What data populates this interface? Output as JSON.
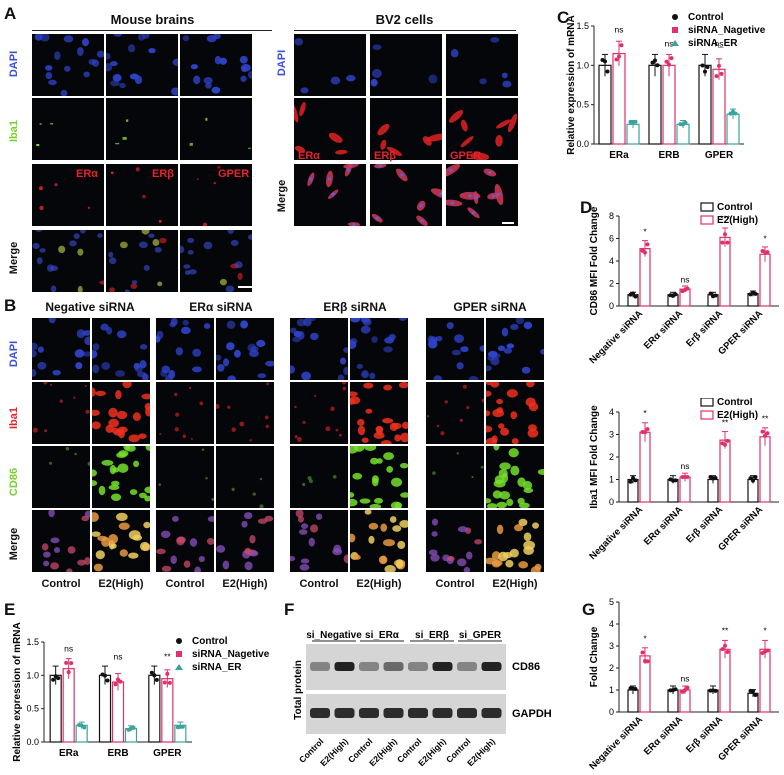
{
  "panels": {
    "A": {
      "label": "A",
      "groups": [
        "Mouse brains",
        "BV2 cells"
      ],
      "rows_mouse": [
        "DAPI",
        "Iba1",
        "",
        "Merge"
      ],
      "rows_bv2": [
        "DAPI",
        "",
        "Merge"
      ],
      "receptors": [
        "ERα",
        "ERβ",
        "GPER"
      ]
    },
    "B": {
      "label": "B",
      "groups": [
        "Negative siRNA",
        "ERα siRNA",
        "ERβ siRNA",
        "GPER siRNA"
      ],
      "rows": [
        "DAPI",
        "Iba1",
        "CD86",
        "Merge"
      ],
      "conditions": [
        "Control",
        "E2(High)"
      ]
    },
    "C": {
      "label": "C"
    },
    "D": {
      "label": "D"
    },
    "E": {
      "label": "E"
    },
    "F": {
      "label": "F",
      "groups": [
        "si_Negative",
        "si_ERα",
        "si_ERβ",
        "si_GPER"
      ],
      "bands": [
        "CD86",
        "GAPDH"
      ],
      "side_label": "Total protein",
      "lanes": [
        "Control",
        "E2(High)",
        "Control",
        "E2(High)",
        "Control",
        "E2(High)",
        "Control",
        "E2(High)"
      ]
    },
    "G": {
      "label": "G"
    }
  },
  "colors": {
    "control": "#111111",
    "e2": "#e0306a",
    "negative": "#e0306a",
    "er": "#3aa39a",
    "dapi": "#3b4fd8",
    "iba1_green": "#8fe23a",
    "red": "#e8222a",
    "cd86": "#7fd43a"
  },
  "chart_data": [
    {
      "id": "C",
      "type": "bar",
      "categories": [
        "ERa",
        "ERB",
        "GPER"
      ],
      "series": [
        {
          "name": "Control",
          "values": [
            1.0,
            1.0,
            1.0
          ]
        },
        {
          "name": "siRNA_Nagetive",
          "values": [
            1.15,
            1.0,
            0.95
          ]
        },
        {
          "name": "siRNA_ER",
          "values": [
            0.25,
            0.25,
            0.38
          ]
        }
      ],
      "ylabel": "Relative expression of mRNA",
      "ylim": [
        0,
        1.5
      ],
      "yticks": [
        "0.0",
        "0.5",
        "1.0",
        "1.5"
      ],
      "annotations": [
        "ns",
        "ns",
        "ns"
      ]
    },
    {
      "id": "D1",
      "type": "bar",
      "categories": [
        "Negative siRNA",
        "ERα siRNA",
        "Erβ siRNA",
        "GPER siRNA"
      ],
      "series": [
        {
          "name": "Control",
          "values": [
            1.0,
            1.0,
            1.0,
            1.1
          ]
        },
        {
          "name": "E2(High)",
          "values": [
            5.1,
            1.5,
            6.1,
            4.6
          ]
        }
      ],
      "ylabel": "CD86 MFI Fold Change",
      "ylim": [
        0,
        8
      ],
      "yticks": [
        "0",
        "2",
        "4",
        "6",
        "8"
      ],
      "annotations": [
        "*",
        "ns",
        "***",
        "*"
      ]
    },
    {
      "id": "D2",
      "type": "bar",
      "categories": [
        "Negative siRNA",
        "ERα siRNA",
        "Erβ siRNA",
        "GPER siRNA"
      ],
      "series": [
        {
          "name": "Control",
          "values": [
            1.0,
            1.0,
            1.0,
            1.0
          ]
        },
        {
          "name": "E2(High)",
          "values": [
            3.1,
            1.1,
            2.75,
            2.9
          ]
        }
      ],
      "ylabel": "Iba1 MFI Fold Change",
      "ylim": [
        0,
        4
      ],
      "yticks": [
        "0",
        "1",
        "2",
        "3",
        "4"
      ],
      "annotations": [
        "*",
        "ns",
        "**",
        "**"
      ]
    },
    {
      "id": "E",
      "type": "bar",
      "categories": [
        "ERa",
        "ERB",
        "GPER"
      ],
      "series": [
        {
          "name": "Control",
          "values": [
            1.0,
            1.0,
            1.0
          ]
        },
        {
          "name": "siRNA_Nagetive",
          "values": [
            1.1,
            0.9,
            0.95
          ]
        },
        {
          "name": "siRNA_ER",
          "values": [
            0.25,
            0.2,
            0.25
          ]
        }
      ],
      "ylabel": "Relative expression of mRNA",
      "ylim": [
        0,
        1.5
      ],
      "yticks": [
        "0.0",
        "0.5",
        "1.0",
        "1.5"
      ],
      "annotations": [
        "ns",
        "ns",
        "**",
        "ns"
      ]
    },
    {
      "id": "G",
      "type": "bar",
      "categories": [
        "Negative siRNA",
        "ERα siRNA",
        "Erβ siRNA",
        "GPER siRNA"
      ],
      "series": [
        {
          "name": "Control",
          "values": [
            1.0,
            1.0,
            1.0,
            0.85
          ]
        },
        {
          "name": "E2(High)",
          "values": [
            2.55,
            1.0,
            2.85,
            2.85
          ]
        }
      ],
      "ylabel": "Fold Change",
      "ylim": [
        0,
        5
      ],
      "yticks": [
        "0",
        "1",
        "2",
        "3",
        "4",
        "5"
      ],
      "annotations": [
        "*",
        "ns",
        "**",
        "*"
      ]
    }
  ]
}
